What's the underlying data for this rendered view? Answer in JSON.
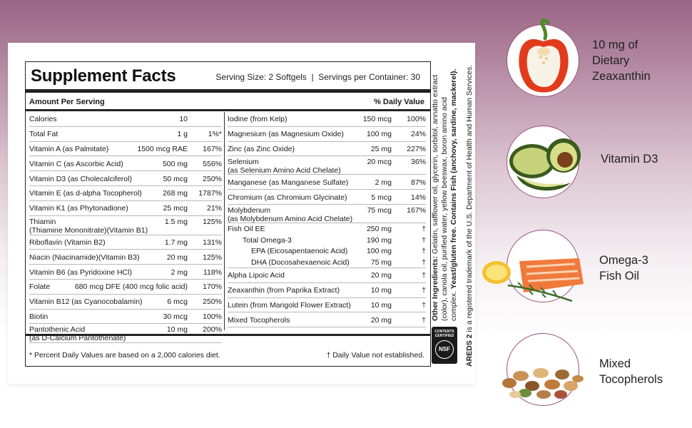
{
  "panel": {
    "title": "Supplement Facts",
    "serving": "Serving Size: 2 Softgels  |  Servings per Container: 30",
    "header_left": "Amount Per Serving",
    "header_right": "% Daily Value",
    "left_rows": [
      {
        "name": "Calories",
        "amount": "10",
        "dv": ""
      },
      {
        "name": "Total Fat",
        "amount": "1 g",
        "dv": "1%*"
      },
      {
        "name": "Vitamin A (as Palmitate)",
        "amount": "1500 mcg RAE",
        "dv": "167%"
      },
      {
        "name": "Vitamin C (as Ascorbic Acid)",
        "amount": "500 mg",
        "dv": "556%"
      },
      {
        "name": "Vitamin D3 (as Cholecalciferol)",
        "amount": "50 mcg",
        "dv": "250%"
      },
      {
        "name": "Vitamin E (as d-alpha Tocopherol)",
        "amount": "268 mg",
        "dv": "1787%"
      },
      {
        "name": "Vitamin K1 (as Phytonadione)",
        "amount": "25 mcg",
        "dv": "21%"
      },
      {
        "name": "Thiamin",
        "name2": "(Thiamine Mononitrate)(Vitamin B1)",
        "amount": "1.5 mg",
        "dv": "125%"
      },
      {
        "name": "Riboflavin (Vitamin B2)",
        "amount": "1.7 mg",
        "dv": "131%"
      },
      {
        "name": "Niacin (Niacinamide)(Vitamin B3)",
        "amount": "20 mg",
        "dv": "125%"
      },
      {
        "name": "Vitamin B6 (as Pyridoxine HCl)",
        "amount": "2 mg",
        "dv": "118%"
      },
      {
        "name": "Folate",
        "amount": "680 mcg DFE (400 mcg folic acid)",
        "dv": "170%"
      },
      {
        "name": "Vitamin B12 (as Cyanocobalamin)",
        "amount": "6 mcg",
        "dv": "250%"
      },
      {
        "name": "Biotin",
        "amount": "30 mcg",
        "dv": "100%"
      },
      {
        "name": "Pantothenic Acid",
        "name2": "(as D-Calcium Pantothenate)",
        "amount": "10 mg",
        "dv": "200%"
      }
    ],
    "right_rows": [
      {
        "name": "Iodine (from Kelp)",
        "amount": "150 mcg",
        "dv": "100%"
      },
      {
        "name": "Magnesium (as Magnesium Oxide)",
        "amount": "100 mg",
        "dv": "24%"
      },
      {
        "name": "Zinc (as Zinc Oxide)",
        "amount": "25 mg",
        "dv": "227%"
      },
      {
        "name": "Selenium",
        "name2": "(as Selenium Amino Acid Chelate)",
        "amount": "20 mcg",
        "dv": "36%"
      },
      {
        "name": "Manganese (as Manganese Sulfate)",
        "amount": "2 mg",
        "dv": "87%"
      },
      {
        "name": "Chromium (as Chromium Glycinate)",
        "amount": "5 mcg",
        "dv": "14%"
      },
      {
        "name": "Molybdenum",
        "name2": "(as Molybdenum Amino Acid Chelate)",
        "amount": "75 mcg",
        "dv": "167%"
      },
      {
        "name": "Fish Oil EE",
        "amount": "250 mg",
        "dv": "†"
      },
      {
        "name": "Total Omega-3",
        "amount": "190 mg",
        "dv": "†"
      },
      {
        "name": "EPA (Eicosapentaenoic Acid)",
        "amount": "100 mg",
        "dv": "†"
      },
      {
        "name": "DHA (Docosahexaenoic Acid)",
        "amount": "75 mg",
        "dv": "†"
      },
      {
        "name": "Alpha Lipoic Acid",
        "amount": "20 mg",
        "dv": "†"
      },
      {
        "name": "Zeaxanthin (from Paprika Extract)",
        "amount": "10 mg",
        "dv": "†"
      },
      {
        "name": "Lutein (from Marigold Flower Extract)",
        "amount": "10 mg",
        "dv": "†"
      },
      {
        "name": "Mixed Tocopherols",
        "amount": "20 mg",
        "dv": "†"
      }
    ],
    "footnote_left": "* Percent Daily Values are based on a 2,000 calories diet.",
    "footnote_right": "† Daily Value not established."
  },
  "ingredients": {
    "label": "Other Ingredients:",
    "line1": "Gelatin, safflower oil, glycerin, sorbitol, annatto extract",
    "line2": "(color), canola oil, purified water, yellow beeswax, boron amino acid",
    "line3": "complex. ",
    "line3_bold": "Yeast/gluten free. Contains Fish (anchovy, sardine, mackerel).",
    "trademark": "is a registered trademark of the U.S. Department of Health and Human Services.",
    "trademark_bold": "AREDS 2"
  },
  "nsf": {
    "line1": "CONTENTS",
    "line2": "CERTIFIED",
    "mark": "NSF"
  },
  "features": [
    {
      "line1": "10 mg of",
      "line2": "Dietary",
      "line3": "Zeaxanthin",
      "icon": "red-pepper-icon"
    },
    {
      "line1": "Vitamin D3",
      "icon": "avocado-icon"
    },
    {
      "line1": "Omega-3",
      "line2": "Fish Oil",
      "icon": "salmon-icon"
    },
    {
      "line1": "Mixed",
      "line2": "Tocopherols",
      "icon": "nuts-icon"
    }
  ],
  "colors": {
    "accent": "#9a4f7b",
    "ink": "#1a1a1a"
  }
}
